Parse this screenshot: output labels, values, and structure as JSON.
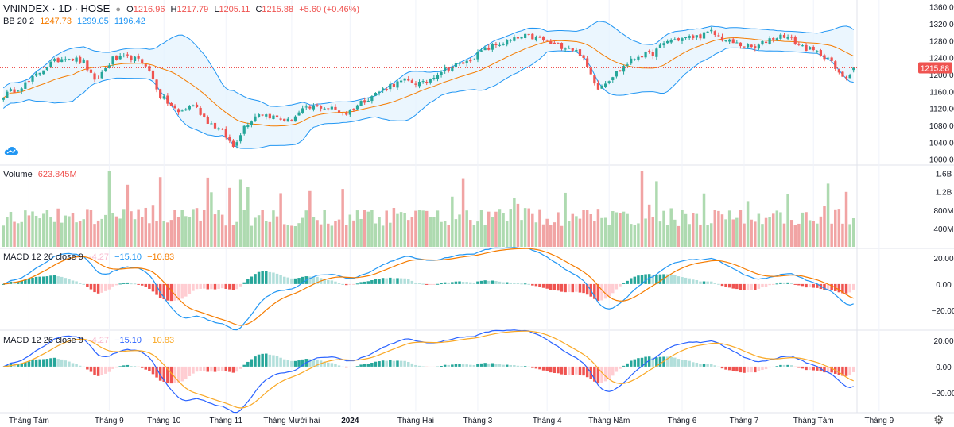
{
  "header": {
    "symbol": "VNINDEX · 1D · HOSE",
    "o_label": "O",
    "o_val": "1216.96",
    "h_label": "H",
    "h_val": "1217.79",
    "l_label": "L",
    "l_val": "1205.11",
    "c_label": "C",
    "c_val": "1215.88",
    "change": "+5.60 (+0.46%)"
  },
  "bb": {
    "label": "BB 20 2",
    "basis": "1247.73",
    "upper": "1299.05",
    "lower": "1196.42"
  },
  "volume": {
    "label": "Volume",
    "value": "623.845M"
  },
  "macd1": {
    "label": "MACD 12 26 close 9",
    "hist": "-4.27",
    "macd": "−15.10",
    "signal": "−10.83"
  },
  "macd2": {
    "label": "MACD 12 26 close 9",
    "hist": "-4.27",
    "macd": "−15.10",
    "signal": "−10.83"
  },
  "price_tag": "1215.88",
  "colors": {
    "up": "#26a69a",
    "down": "#ef5350",
    "basis": "#f57c00",
    "band": "#2196f3",
    "fill": "#e3f2fd",
    "macd1_line": "#2196f3",
    "signal1": "#f57c00",
    "macd2_line": "#2962ff",
    "signal2": "#f9a825",
    "grid": "#f0f3fa"
  },
  "chart_data": [
    {
      "type": "candlestick",
      "title": "VNINDEX 1D HOSE",
      "y_ticks": [
        1000,
        1040,
        1080,
        1120,
        1160,
        1200,
        1240,
        1280,
        1320,
        1360
      ],
      "y_tick_labels": [
        "1000.00",
        "1040.00",
        "1080.00",
        "1120.00",
        "1160.00",
        "1200.00",
        "1240.00",
        "1280.00",
        "1320.00",
        "1360.00"
      ],
      "ylim": [
        990,
        1365
      ],
      "x_tick_labels": [
        "Tháng Tám",
        "Tháng 9",
        "Tháng 10",
        "Tháng 11",
        "Tháng Mười hai",
        "2024",
        "Tháng Hai",
        "Tháng 3",
        "Tháng 4",
        "Tháng Năm",
        "Tháng 6",
        "Tháng 7",
        "Tháng Tám",
        "Tháng 9"
      ],
      "x_tick_index": [
        7,
        29,
        44,
        61,
        79,
        95,
        113,
        130,
        149,
        166,
        186,
        203,
        222,
        240
      ],
      "anchors": [
        [
          0,
          1150
        ],
        [
          7,
          1183
        ],
        [
          12,
          1222
        ],
        [
          17,
          1243
        ],
        [
          22,
          1230
        ],
        [
          25,
          1182
        ],
        [
          30,
          1237
        ],
        [
          35,
          1240
        ],
        [
          39,
          1225
        ],
        [
          43,
          1150
        ],
        [
          48,
          1110
        ],
        [
          52,
          1130
        ],
        [
          56,
          1090
        ],
        [
          60,
          1065
        ],
        [
          63,
          1030
        ],
        [
          66,
          1078
        ],
        [
          70,
          1110
        ],
        [
          74,
          1100
        ],
        [
          78,
          1090
        ],
        [
          82,
          1115
        ],
        [
          86,
          1125
        ],
        [
          90,
          1120
        ],
        [
          94,
          1108
        ],
        [
          98,
          1135
        ],
        [
          102,
          1155
        ],
        [
          106,
          1175
        ],
        [
          110,
          1185
        ],
        [
          115,
          1178
        ],
        [
          119,
          1205
        ],
        [
          123,
          1220
        ],
        [
          127,
          1230
        ],
        [
          131,
          1255
        ],
        [
          135,
          1270
        ],
        [
          139,
          1280
        ],
        [
          143,
          1290
        ],
        [
          147,
          1285
        ],
        [
          151,
          1270
        ],
        [
          155,
          1265
        ],
        [
          158,
          1250
        ],
        [
          161,
          1200
        ],
        [
          163,
          1170
        ],
        [
          166,
          1190
        ],
        [
          170,
          1220
        ],
        [
          174,
          1245
        ],
        [
          178,
          1250
        ],
        [
          182,
          1280
        ],
        [
          186,
          1285
        ],
        [
          190,
          1290
        ],
        [
          194,
          1300
        ],
        [
          198,
          1280
        ],
        [
          202,
          1270
        ],
        [
          206,
          1262
        ],
        [
          210,
          1285
        ],
        [
          214,
          1293
        ],
        [
          218,
          1270
        ],
        [
          222,
          1255
        ],
        [
          226,
          1240
        ],
        [
          229,
          1200
        ],
        [
          231,
          1195
        ],
        [
          233,
          1215.88
        ]
      ],
      "bb_upper": "1299.05",
      "bb_basis": "1247.73",
      "bb_lower": "1196.42",
      "last_close": 1215.88
    },
    {
      "type": "bar",
      "title": "Volume",
      "y_ticks": [
        400000000,
        800000000,
        1200000000,
        1600000000
      ],
      "y_tick_labels": [
        "400M",
        "800M",
        "1.2B",
        "1.6B"
      ],
      "ylim": [
        0,
        1750000000
      ],
      "last": 623845000
    },
    {
      "type": "macd",
      "title": "MACD 12 26 close 9",
      "y_ticks": [
        -20,
        0,
        20
      ],
      "y_tick_labels": [
        "−20.00",
        "0.00",
        "20.00"
      ],
      "ylim": [
        -34,
        26
      ],
      "last_hist": -4.27,
      "last_macd": -15.1,
      "last_signal": -10.83
    },
    {
      "type": "macd",
      "title": "MACD 12 26 close 9",
      "y_ticks": [
        -20,
        0,
        20
      ],
      "y_tick_labels": [
        "−20.00",
        "0.00",
        "20.00"
      ],
      "ylim": [
        -34,
        26
      ],
      "last_hist": -4.27,
      "last_macd": -15.1,
      "last_signal": -10.83
    }
  ]
}
